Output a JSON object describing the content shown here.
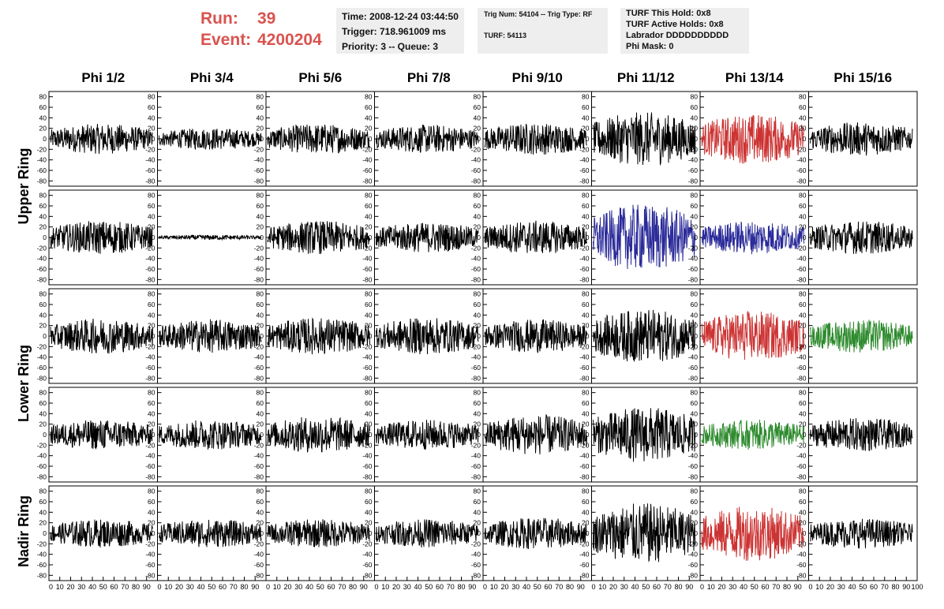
{
  "header": {
    "run_label": "Run:",
    "run_value": "39",
    "event_label": "Event:",
    "event_value": "4200204",
    "info1": [
      "Time: 2008-12-24 03:44:50",
      "Trigger: 718.961009 ms",
      "Priority: 3 -- Queue: 3"
    ],
    "info2": [
      "Trig Num: 54104 -- Trig Type: RF",
      "TURF: 54113"
    ],
    "info3": [
      "TURF This Hold: 0x8",
      "TURF Active Holds: 0x8",
      "Labrador DDDDDDDDDD",
      "Phi Mask: 0"
    ]
  },
  "chart_data": {
    "type": "line",
    "columns": [
      "Phi 1/2",
      "Phi 3/4",
      "Phi 5/6",
      "Phi 7/8",
      "Phi 9/10",
      "Phi 11/12",
      "Phi 13/14",
      "Phi 15/16"
    ],
    "ring_labels": [
      {
        "text": "Upper Ring",
        "rows": [
          0,
          1
        ]
      },
      {
        "text": "Lower Ring",
        "rows": [
          2,
          3
        ]
      },
      {
        "text": "Nadir Ring",
        "rows": [
          4
        ]
      }
    ],
    "ylim": [
      -90,
      90
    ],
    "yticks": [
      -80,
      -60,
      -40,
      -20,
      0,
      20,
      40,
      60,
      80
    ],
    "xlim": [
      0,
      100
    ],
    "xtick_labels": [
      "0",
      "10",
      "20",
      "30",
      "40",
      "50",
      "60",
      "70",
      "80",
      "90",
      "100"
    ],
    "samples_per_trace": 260,
    "colors": {
      "normal": "#000000",
      "red": "#cc3333",
      "blue": "#2b2b9a",
      "green": "#2e8b2e"
    },
    "panels": [
      [
        {
          "amp": 18,
          "color": "normal"
        },
        {
          "amp": 13,
          "color": "normal"
        },
        {
          "amp": 18,
          "color": "normal"
        },
        {
          "amp": 17,
          "color": "normal"
        },
        {
          "amp": 19,
          "color": "normal"
        },
        {
          "amp": 32,
          "color": "normal"
        },
        {
          "amp": 30,
          "color": "red"
        },
        {
          "amp": 20,
          "color": "normal"
        }
      ],
      [
        {
          "amp": 20,
          "color": "normal"
        },
        {
          "amp": 3,
          "color": "normal"
        },
        {
          "amp": 20,
          "color": "normal"
        },
        {
          "amp": 18,
          "color": "normal"
        },
        {
          "amp": 20,
          "color": "normal"
        },
        {
          "amp": 40,
          "color": "blue"
        },
        {
          "amp": 20,
          "color": "blue"
        },
        {
          "amp": 20,
          "color": "normal"
        }
      ],
      [
        {
          "amp": 21,
          "color": "normal"
        },
        {
          "amp": 20,
          "color": "normal"
        },
        {
          "amp": 22,
          "color": "normal"
        },
        {
          "amp": 22,
          "color": "normal"
        },
        {
          "amp": 20,
          "color": "normal"
        },
        {
          "amp": 32,
          "color": "normal"
        },
        {
          "amp": 30,
          "color": "red"
        },
        {
          "amp": 20,
          "color": "green"
        }
      ],
      [
        {
          "amp": 18,
          "color": "normal"
        },
        {
          "amp": 18,
          "color": "normal"
        },
        {
          "amp": 22,
          "color": "normal"
        },
        {
          "amp": 18,
          "color": "normal"
        },
        {
          "amp": 24,
          "color": "normal"
        },
        {
          "amp": 33,
          "color": "normal"
        },
        {
          "amp": 18,
          "color": "green"
        },
        {
          "amp": 20,
          "color": "normal"
        }
      ],
      [
        {
          "amp": 17,
          "color": "normal"
        },
        {
          "amp": 17,
          "color": "normal"
        },
        {
          "amp": 17,
          "color": "normal"
        },
        {
          "amp": 17,
          "color": "normal"
        },
        {
          "amp": 19,
          "color": "normal"
        },
        {
          "amp": 36,
          "color": "normal"
        },
        {
          "amp": 33,
          "color": "red"
        },
        {
          "amp": 18,
          "color": "normal"
        }
      ]
    ]
  }
}
